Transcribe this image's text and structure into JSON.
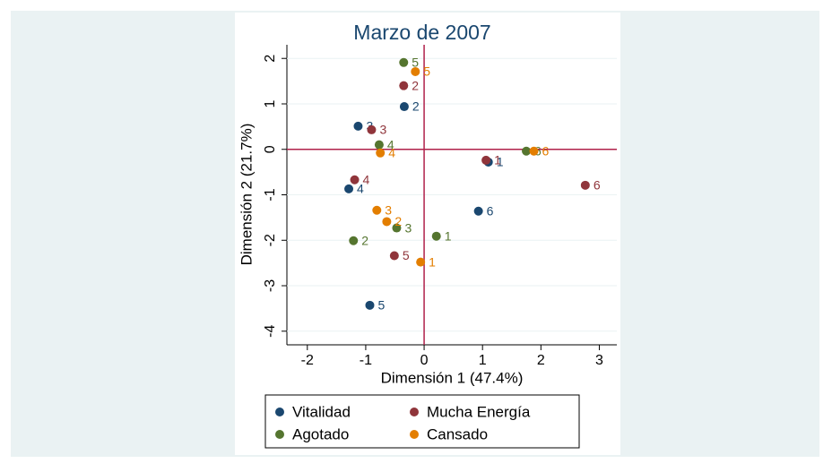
{
  "chart_data": {
    "type": "scatter",
    "title": "Marzo de 2007",
    "x_label": "Dimensión 1 (47.4%)",
    "y_label": "Dimensión 2 (21.7%)",
    "xlim": [
      -2.35,
      3.3
    ],
    "ylim": [
      -4.3,
      2.3
    ],
    "xticks": [
      -2,
      -1,
      0,
      1,
      2,
      3
    ],
    "yticks": [
      -4,
      -3,
      -2,
      -1,
      0,
      1,
      2
    ],
    "reference_lines": {
      "x": 0,
      "y": 0,
      "color": "#b0204a"
    },
    "point_labels": [
      "1",
      "2",
      "3",
      "4",
      "5",
      "6"
    ],
    "series": [
      {
        "name": "Vitalidad",
        "color": "#1a476f",
        "x": [
          1.1,
          -0.34,
          -1.13,
          -1.29,
          -0.93,
          0.93
        ],
        "values": [
          -0.28,
          0.94,
          0.51,
          -0.87,
          -3.43,
          -1.36
        ]
      },
      {
        "name": "Mucha Energía",
        "color": "#90353b",
        "x": [
          1.06,
          -0.35,
          -0.9,
          -1.19,
          -0.51,
          2.76
        ],
        "values": [
          -0.24,
          1.4,
          0.43,
          -0.67,
          -2.34,
          -0.79
        ]
      },
      {
        "name": "Agotado",
        "color": "#55752f",
        "x": [
          0.21,
          -1.21,
          -0.47,
          -0.77,
          -0.35,
          1.75
        ],
        "values": [
          -1.91,
          -2.01,
          -1.73,
          0.1,
          1.91,
          -0.04
        ]
      },
      {
        "name": "Cansado",
        "color": "#e37e00",
        "x": [
          -0.06,
          -0.64,
          -0.81,
          -0.75,
          -0.15,
          1.88
        ],
        "values": [
          -2.48,
          -1.59,
          -1.34,
          -0.08,
          1.71,
          -0.04
        ]
      }
    ]
  }
}
